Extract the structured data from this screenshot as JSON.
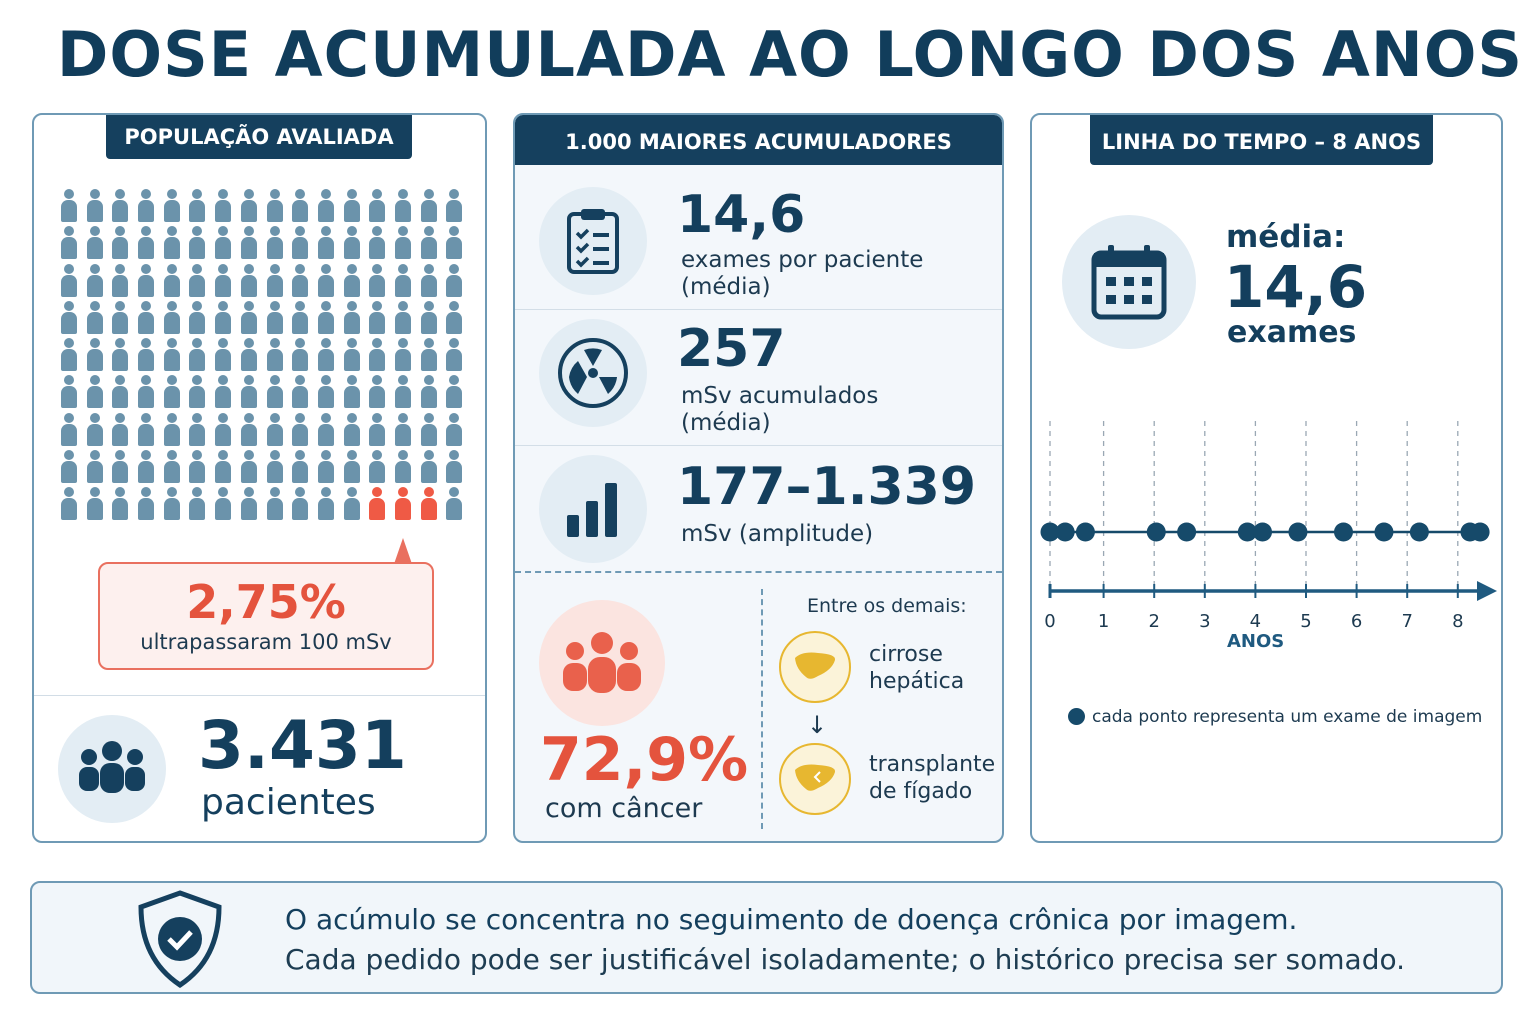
{
  "title": "DOSE ACUMULADA AO LONGO DOS ANOS",
  "population": {
    "tag": "POPULAÇÃO AVALIADA",
    "grid_rows": 9,
    "grid_cols": 16,
    "highlighted_count": 3,
    "percent": "2,75%",
    "percent_label": "ultrapassaram 100 mSv",
    "total": "3.431",
    "total_label": "pacientes"
  },
  "top": {
    "tag": "1.000 MAIORES ACUMULADORES",
    "stats": [
      {
        "value": "14,6",
        "label1": "exames por paciente",
        "label2": "(média)",
        "icon": "clipboard-icon"
      },
      {
        "value": "257",
        "label1": "mSv acumulados",
        "label2": "(média)",
        "icon": "radiation-icon"
      },
      {
        "value": "177–1.339",
        "label1": "mSv (amplitude)",
        "label2": "",
        "icon": "bar-chart-icon"
      }
    ],
    "cancer_percent": "72,9%",
    "cancer_label": "com câncer",
    "others_title": "Entre os demais:",
    "cirrhosis_l1": "cirrose",
    "cirrhosis_l2": "hepática",
    "transplant_l1": "transplante",
    "transplant_l2": "de fígado"
  },
  "timeline": {
    "tag": "LINHA DO TEMPO – 8 ANOS",
    "avg_label": "média:",
    "avg_value": "14,6",
    "avg_unit": "exames",
    "axis_label": "ANOS",
    "ticks": [
      "0",
      "1",
      "2",
      "3",
      "4",
      "5",
      "6",
      "7",
      "8"
    ],
    "exam_years": [
      0,
      0.3,
      0.7,
      2.1,
      2.7,
      3.9,
      4.2,
      4.9,
      5.8,
      6.6,
      7.3,
      8.3,
      8.5
    ],
    "legend": "cada ponto representa um exame de imagem"
  },
  "footer": {
    "line1": "O acúmulo se concentra no seguimento de doença crônica por imagem.",
    "line2": "Cada pedido pode ser justificável isoladamente; o histórico precisa ser somado."
  },
  "colors": {
    "navy": "#143f5d",
    "accent_red": "#e4533d",
    "person_blue": "#6b93ab",
    "liver_yellow": "#e7b730"
  }
}
